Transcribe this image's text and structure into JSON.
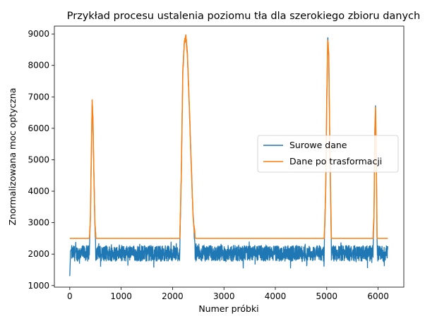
{
  "chart_data": {
    "type": "line",
    "title": "Przykład procesu ustalenia poziomu tła dla szerokiego zbioru danych",
    "xlabel": "Numer próbki",
    "ylabel": "Znormalizowana moc optyczna",
    "xlim": [
      -300,
      6500
    ],
    "ylim": [
      950,
      9250
    ],
    "xticks": [
      0,
      1000,
      2000,
      3000,
      4000,
      5000,
      6000
    ],
    "yticks": [
      1000,
      2000,
      3000,
      4000,
      5000,
      6000,
      7000,
      8000,
      9000
    ],
    "grid": false,
    "legend": {
      "placement": "center-right"
    },
    "series": [
      {
        "name": "Surowe dane",
        "color": "#1f77b4",
        "baseline_range": [
          1800,
          2250
        ],
        "x": [
          0,
          15,
          30,
          380,
          400,
          420,
          435,
          450,
          470,
          490,
          510,
          2140,
          2170,
          2200,
          2230,
          2260,
          2290,
          2320,
          2360,
          2400,
          2440,
          4950,
          4980,
          5000,
          5020,
          5040,
          5060,
          5090,
          5900,
          5920,
          5935,
          5950,
          5965,
          5980,
          6190
        ],
        "y": [
          1300,
          2100,
          2150,
          2200,
          3000,
          5200,
          6850,
          6300,
          4500,
          2900,
          2100,
          2150,
          4500,
          7800,
          8700,
          8950,
          8300,
          7000,
          5000,
          3200,
          2200,
          2150,
          4000,
          6800,
          8850,
          8300,
          5500,
          2200,
          2150,
          3200,
          5800,
          6750,
          5000,
          2300,
          2200
        ]
      },
      {
        "name": "Dane po trasformacji",
        "color": "#ff7f0e",
        "x": [
          0,
          380,
          400,
          420,
          435,
          450,
          470,
          490,
          510,
          2140,
          2170,
          2200,
          2230,
          2260,
          2290,
          2320,
          2360,
          2400,
          2440,
          4950,
          4980,
          5000,
          5020,
          5040,
          5060,
          5090,
          5900,
          5920,
          5935,
          5950,
          5965,
          5980,
          6190
        ],
        "y": [
          2500,
          2500,
          3000,
          5200,
          6850,
          6300,
          4500,
          2900,
          2500,
          2500,
          4500,
          7800,
          8700,
          8950,
          8300,
          7000,
          5000,
          3200,
          2500,
          2500,
          4000,
          6800,
          8850,
          8300,
          5500,
          2500,
          2500,
          3200,
          5800,
          6750,
          5000,
          2500,
          2500
        ]
      }
    ]
  }
}
